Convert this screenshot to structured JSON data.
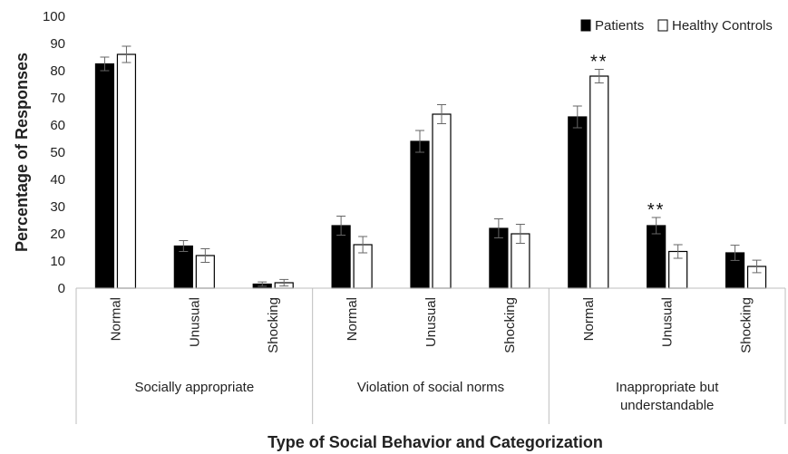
{
  "chart_data": {
    "type": "bar",
    "ylabel": "Percentage of Responses",
    "xlabel": "Type of Social Behavior and Categorization",
    "ylim": [
      0,
      100
    ],
    "yticks": [
      0,
      10,
      20,
      30,
      40,
      50,
      60,
      70,
      80,
      90,
      100
    ],
    "legend_position": "top-right",
    "groups": [
      {
        "label": "Socially appropriate",
        "label_lines": [
          "Socially appropriate"
        ],
        "categories": [
          "Normal",
          "Unusual",
          "Shocking"
        ]
      },
      {
        "label": "Violation of social norms",
        "label_lines": [
          "Violation of social norms"
        ],
        "categories": [
          "Normal",
          "Unusual",
          "Shocking"
        ]
      },
      {
        "label": "Inappropriate but understandable",
        "label_lines": [
          "Inappropriate but",
          "understandable"
        ],
        "categories": [
          "Normal",
          "Unusual",
          "Shocking"
        ]
      }
    ],
    "categories": [
      "Normal",
      "Unusual",
      "Shocking",
      "Normal",
      "Unusual",
      "Shocking",
      "Normal",
      "Unusual",
      "Shocking"
    ],
    "series": [
      {
        "name": "Patients",
        "color": "#000000",
        "values": [
          82.5,
          15.5,
          1.5,
          23,
          54,
          22,
          63,
          23,
          13
        ],
        "errors": [
          2.5,
          2,
          0.8,
          3.5,
          4,
          3.5,
          4,
          3,
          2.8
        ]
      },
      {
        "name": "Healthy Controls",
        "color": "#ffffff",
        "values": [
          86,
          12,
          2,
          16,
          64,
          20,
          78,
          13.5,
          8
        ],
        "errors": [
          3,
          2.5,
          1.2,
          3,
          3.5,
          3.5,
          2.5,
          2.5,
          2.3
        ]
      }
    ],
    "annotations": [
      {
        "category_index": 6,
        "series_index": 1,
        "text": "**"
      },
      {
        "category_index": 7,
        "series_index": 0,
        "text": "**"
      }
    ]
  }
}
